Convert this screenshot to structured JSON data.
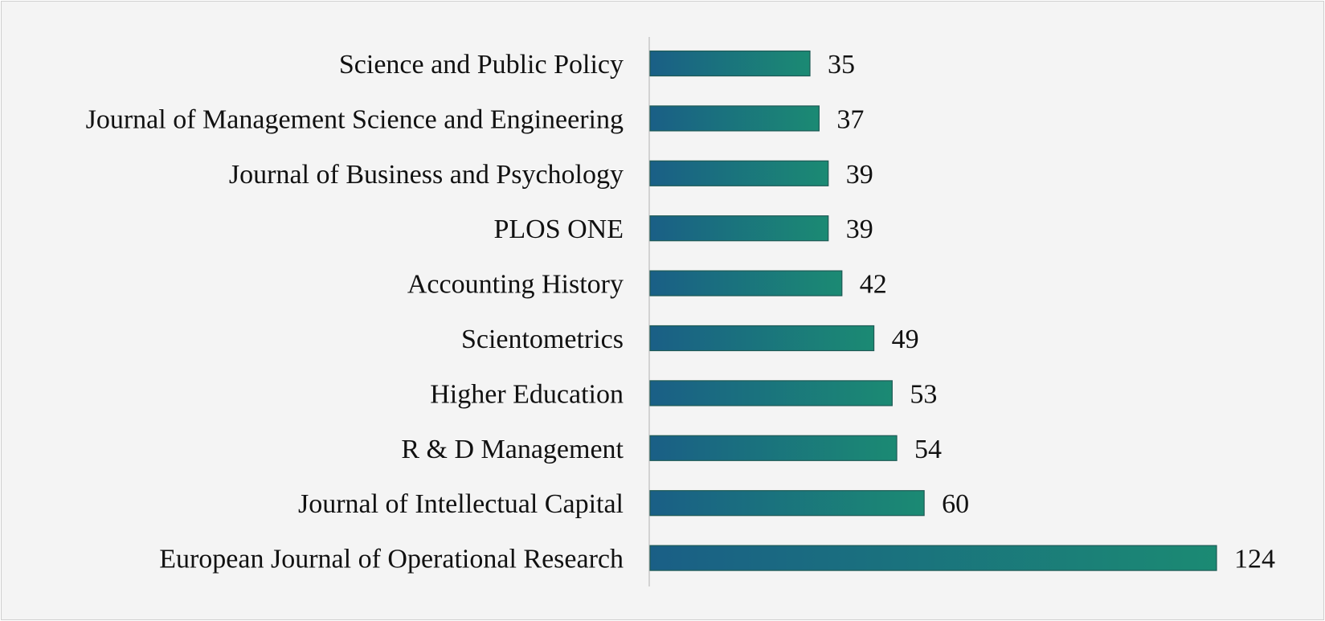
{
  "colors": {
    "bar_gradient_start": "#1a5f86",
    "bar_gradient_end": "#1b8a73",
    "background": "#f4f4f4"
  },
  "chart_data": {
    "type": "bar",
    "orientation": "horizontal",
    "title": "",
    "xlabel": "",
    "ylabel": "",
    "categories": [
      "Science and Public Policy",
      "Journal of Management Science and Engineering",
      "Journal of Business and Psychology",
      "PLOS ONE",
      "Accounting History",
      "Scientometrics",
      "Higher Education",
      "R & D Management",
      "Journal of Intellectual Capital",
      "European Journal of Operational Research"
    ],
    "values": [
      35,
      37,
      39,
      39,
      42,
      49,
      53,
      54,
      60,
      124
    ],
    "xlim": [
      0,
      124
    ],
    "grid": false,
    "legend": "none",
    "data_labels": true
  }
}
